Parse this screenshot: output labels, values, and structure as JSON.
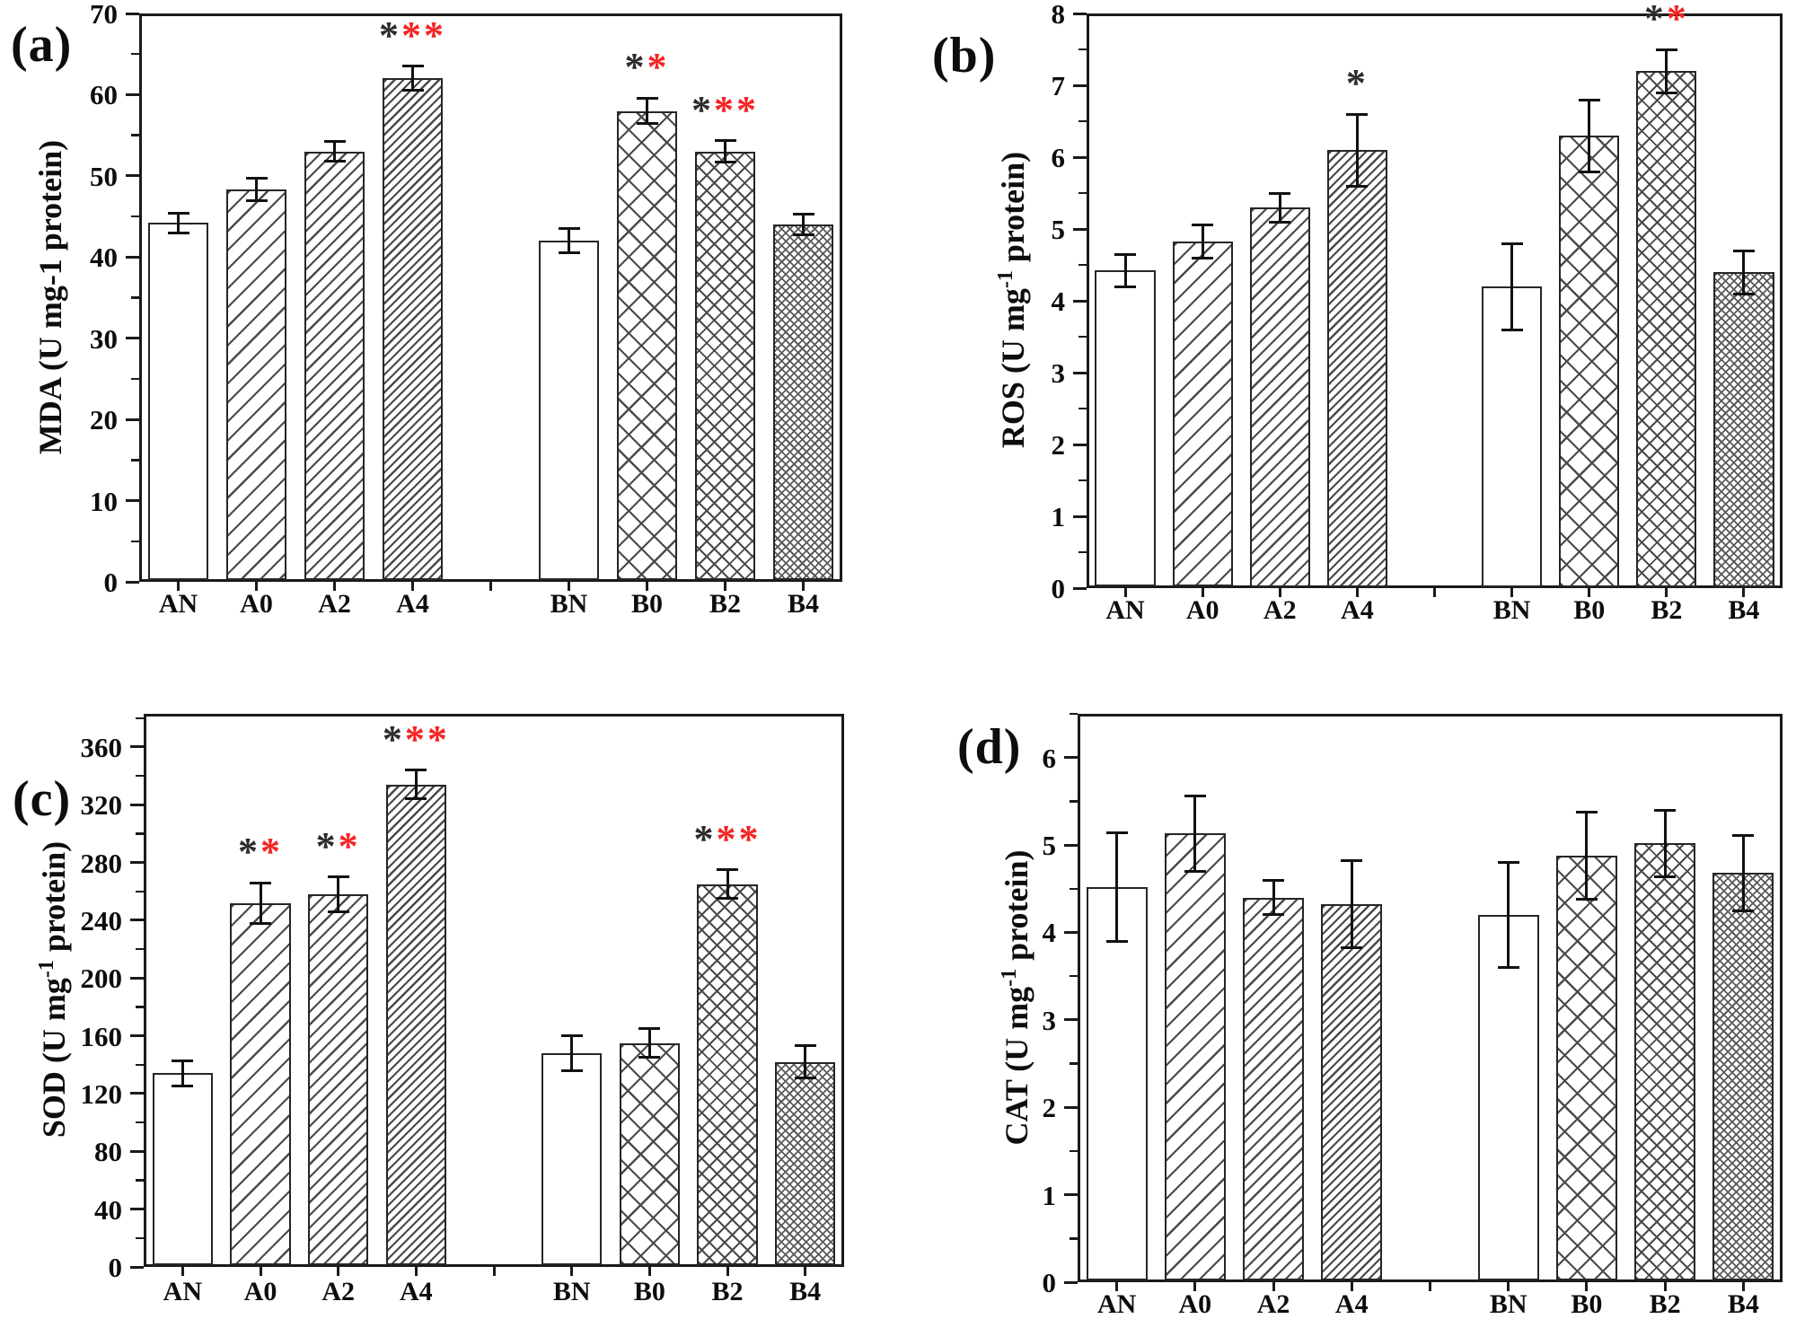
{
  "colors": {
    "star_black": "#2d2d2d",
    "star_red": "#f42525",
    "axis": "#1a1a1a",
    "hatch": "#4a4a4a"
  },
  "chart_data": [
    {
      "id": "a",
      "type": "bar",
      "panel_label": "(a)",
      "ylabel": "MDA (U mg-1 protein)",
      "ylabel_parts": {
        "pre": "MDA (U mg-1 protein)",
        "sup": "",
        "post": ""
      },
      "categories": [
        "AN",
        "A0",
        "A2",
        "A4",
        "BN",
        "B0",
        "B2",
        "B4"
      ],
      "values": [
        44.2,
        48.3,
        53.0,
        62.0,
        42.0,
        58.0,
        53.0,
        44.0
      ],
      "errors": [
        1.2,
        1.4,
        1.2,
        1.5,
        1.5,
        1.6,
        1.3,
        1.3
      ],
      "significance": [
        null,
        null,
        null,
        {
          "black": "*",
          "red": "**"
        },
        null,
        {
          "black": "*",
          "red": "*"
        },
        {
          "black": "*",
          "red": "**"
        },
        null
      ],
      "ylim": [
        0,
        70
      ],
      "yticks": [
        0,
        10,
        20,
        30,
        40,
        50,
        60,
        70
      ],
      "yminor_step": 5,
      "grid": false,
      "legend": null,
      "bar_patterns": [
        "plain",
        "diag-wide",
        "diag-medium",
        "diag-tight",
        "plain",
        "cross-large",
        "cross-medium",
        "cross-fine"
      ]
    },
    {
      "id": "b",
      "type": "bar",
      "panel_label": "(b)",
      "ylabel": "ROS (U mg-1 protein)",
      "ylabel_parts": {
        "pre": "ROS (U mg",
        "sup": "-1",
        "post": " protein)"
      },
      "categories": [
        "AN",
        "A0",
        "A2",
        "A4",
        "BN",
        "B0",
        "B2",
        "B4"
      ],
      "values": [
        4.42,
        4.83,
        5.3,
        6.1,
        4.2,
        6.3,
        7.2,
        4.4
      ],
      "errors": [
        0.22,
        0.23,
        0.2,
        0.5,
        0.6,
        0.5,
        0.3,
        0.3
      ],
      "significance": [
        null,
        null,
        null,
        {
          "black": "*",
          "red": ""
        },
        null,
        null,
        {
          "black": "*",
          "red": "*"
        },
        null
      ],
      "ylim": [
        0,
        8
      ],
      "yticks": [
        0,
        1,
        2,
        3,
        4,
        5,
        6,
        7,
        8
      ],
      "yminor_step": 0.5,
      "grid": false,
      "legend": null,
      "bar_patterns": [
        "plain",
        "diag-wide",
        "diag-medium",
        "diag-tight",
        "plain",
        "cross-large",
        "cross-medium",
        "cross-fine"
      ]
    },
    {
      "id": "c",
      "type": "bar",
      "panel_label": "(c)",
      "ylabel": "SOD (U mg-1 protein)",
      "ylabel_parts": {
        "pre": "SOD (U mg",
        "sup": "-1",
        "post": " protein)"
      },
      "categories": [
        "AN",
        "A0",
        "A2",
        "A4",
        "BN",
        "B0",
        "B2",
        "B4"
      ],
      "values": [
        134,
        252,
        258,
        334,
        148,
        155,
        265,
        142
      ],
      "errors": [
        9,
        14,
        12,
        10,
        12,
        10,
        10,
        11
      ],
      "significance": [
        null,
        {
          "black": "*",
          "red": "*"
        },
        {
          "black": "*",
          "red": "*"
        },
        {
          "black": "*",
          "red": "**"
        },
        null,
        null,
        {
          "black": "*",
          "red": "**"
        },
        null
      ],
      "ylim": [
        0,
        383
      ],
      "yticks": [
        0,
        40,
        80,
        120,
        160,
        200,
        240,
        280,
        320,
        360
      ],
      "yminor_step": 20,
      "grid": false,
      "legend": null,
      "bar_patterns": [
        "plain",
        "diag-wide",
        "diag-medium",
        "diag-tight",
        "plain",
        "cross-large",
        "cross-medium",
        "cross-fine"
      ]
    },
    {
      "id": "d",
      "type": "bar",
      "panel_label": "(d)",
      "ylabel": "CAT (U mg-1 protein)",
      "ylabel_parts": {
        "pre": "CAT (U mg",
        "sup": "-1",
        "post": " protein)"
      },
      "categories": [
        "AN",
        "A0",
        "A2",
        "A4",
        "BN",
        "B0",
        "B2",
        "B4"
      ],
      "values": [
        4.52,
        5.13,
        4.4,
        4.32,
        4.2,
        4.88,
        5.02,
        4.68
      ],
      "errors": [
        0.62,
        0.43,
        0.2,
        0.5,
        0.6,
        0.5,
        0.38,
        0.43
      ],
      "significance": [
        null,
        null,
        null,
        null,
        null,
        null,
        null,
        null
      ],
      "ylim": [
        0,
        6.5
      ],
      "yticks": [
        0,
        1,
        2,
        3,
        4,
        5,
        6
      ],
      "yminor_step": 0.5,
      "grid": false,
      "legend": null,
      "bar_patterns": [
        "plain",
        "diag-wide",
        "diag-medium",
        "diag-tight",
        "plain",
        "cross-large",
        "cross-medium",
        "cross-fine"
      ]
    }
  ]
}
